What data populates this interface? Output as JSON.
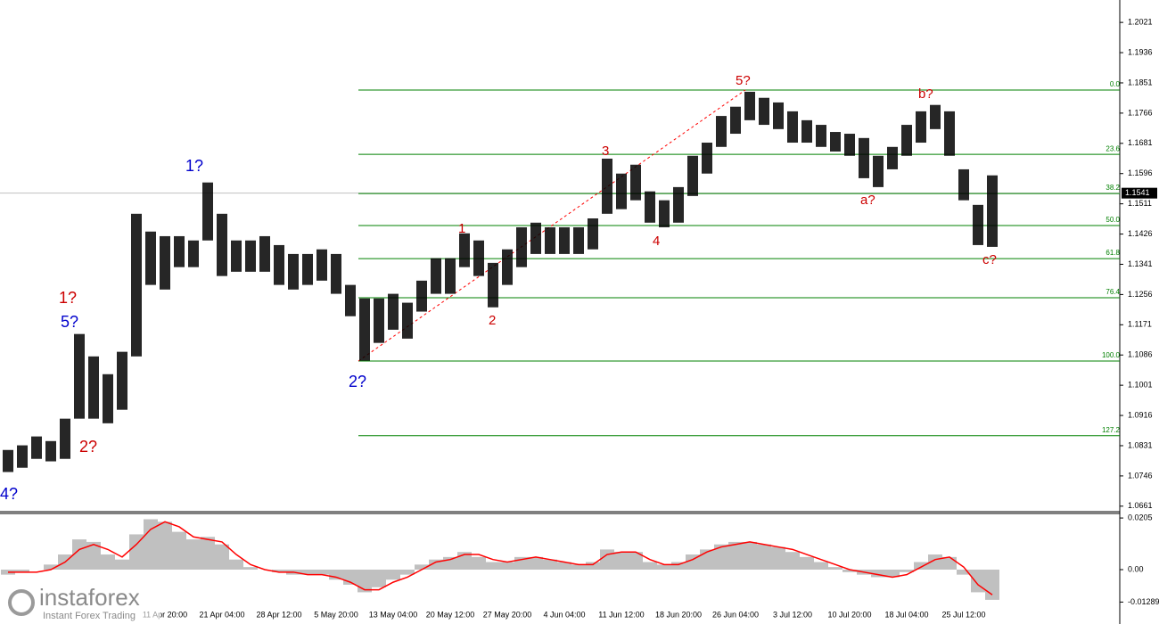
{
  "chart_data": {
    "type": "range",
    "color": "#000000",
    "categories": [
      null,
      null,
      null,
      null,
      null,
      null,
      null,
      null,
      null,
      null,
      null,
      "11 Apr 20:00",
      null,
      null,
      null,
      "21 Apr 04:00",
      null,
      null,
      null,
      "28 Apr 12:00",
      null,
      null,
      null,
      "5 May 20:00",
      null,
      null,
      null,
      "13 May 04:00",
      null,
      null,
      null,
      "20 May 12:00",
      null,
      null,
      null,
      "27 May 20:00",
      null,
      null,
      null,
      "4 Jun 04:00",
      null,
      null,
      null,
      "11 Jun 12:00",
      null,
      null,
      null,
      "18 Jun 20:00",
      null,
      null,
      null,
      "26 Jun 04:00",
      null,
      null,
      null,
      "3 Jul 12:00",
      null,
      null,
      null,
      "10 Jul 20:00",
      null,
      null,
      null,
      "18 Jul 04:00",
      null,
      null,
      null,
      "25 Jul 12:00",
      null,
      null
    ],
    "high": [
      1.0819,
      1.0832,
      1.0857,
      1.0844,
      1.0907,
      1.1145,
      1.1082,
      1.1032,
      1.1095,
      1.1483,
      1.1433,
      1.142,
      1.142,
      1.1408,
      1.1571,
      1.1483,
      1.1408,
      1.1408,
      1.142,
      1.1395,
      1.137,
      1.137,
      1.1383,
      1.137,
      1.1283,
      1.1245,
      1.1245,
      1.1258,
      1.1233,
      1.1295,
      1.1358,
      1.1358,
      1.1428,
      1.1408,
      1.1345,
      1.1383,
      1.1445,
      1.1458,
      1.1445,
      1.1445,
      1.1445,
      1.147,
      1.1638,
      1.1596,
      1.1621,
      1.1546,
      1.1521,
      1.1558,
      1.1646,
      1.1683,
      1.1758,
      1.1784,
      1.1826,
      1.1809,
      1.1796,
      1.1771,
      1.1746,
      1.1733,
      1.1713,
      1.1708,
      1.1696,
      1.1646,
      1.1671,
      1.1733,
      1.1771,
      1.1789,
      1.1771,
      1.1608,
      1.1508,
      1.1591
    ],
    "low": [
      1.0757,
      1.0769,
      1.0794,
      1.0787,
      1.0794,
      1.0907,
      1.0907,
      1.0894,
      1.0932,
      1.1082,
      1.1283,
      1.127,
      1.1333,
      1.1333,
      1.1408,
      1.1308,
      1.132,
      1.132,
      1.132,
      1.1283,
      1.127,
      1.1283,
      1.1295,
      1.1258,
      1.1195,
      1.107,
      1.112,
      1.1157,
      1.1132,
      1.1208,
      1.1258,
      1.1258,
      1.1333,
      1.1308,
      1.122,
      1.1283,
      1.1333,
      1.137,
      1.137,
      1.137,
      1.137,
      1.1383,
      1.1483,
      1.1496,
      1.1521,
      1.1458,
      1.1445,
      1.1458,
      1.1533,
      1.1596,
      1.1671,
      1.1708,
      1.1746,
      1.1733,
      1.1721,
      1.1683,
      1.1683,
      1.1671,
      1.1658,
      1.1646,
      1.1583,
      1.1558,
      1.1608,
      1.1646,
      1.1683,
      1.1721,
      1.1646,
      1.1521,
      1.1395,
      1.139
    ],
    "ylim": [
      1.0648,
      1.2084
    ],
    "yticks": [
      1.2021,
      1.1936,
      1.1851,
      1.1766,
      1.1681,
      1.1596,
      1.1511,
      1.1426,
      1.1341,
      1.1256,
      1.1171,
      1.1086,
      1.1001,
      1.0916,
      1.0831,
      1.0746,
      1.0661
    ],
    "current_price": 1.1541,
    "fib_color": "#008000",
    "trend_color": "#ff0000",
    "fib_levels": [
      {
        "label": "0.0",
        "price": 1.1831
      },
      {
        "label": "23.6",
        "price": 1.165
      },
      {
        "label": "38.2",
        "price": 1.154
      },
      {
        "label": "50.0",
        "price": 1.145
      },
      {
        "label": "61.8",
        "price": 1.1357
      },
      {
        "label": "76.4",
        "price": 1.1247
      },
      {
        "label": "100.0",
        "price": 1.1069
      },
      {
        "label": "127.2",
        "price": 1.0859
      }
    ],
    "waves": [
      {
        "label": "4?",
        "color": "#0000cc"
      },
      {
        "label": "5?",
        "color": "#0000cc"
      },
      {
        "label": "1?",
        "color": "#cc0000"
      },
      {
        "label": "2?",
        "color": "#cc0000"
      },
      {
        "label": "1?",
        "color": "#0000cc"
      },
      {
        "label": "2?",
        "color": "#0000cc"
      },
      {
        "label": "1",
        "color": "#cc0000"
      },
      {
        "label": "2",
        "color": "#cc0000"
      },
      {
        "label": "3",
        "color": "#cc0000"
      },
      {
        "label": "4",
        "color": "#cc0000"
      },
      {
        "label": "5?",
        "color": "#cc0000"
      },
      {
        "label": "a?",
        "color": "#cc0000"
      },
      {
        "label": "b?",
        "color": "#cc0000"
      },
      {
        "label": "c?",
        "color": "#cc0000"
      }
    ],
    "indicator": {
      "type": "macd",
      "hist_color": "#c0c0c0",
      "signal_color": "#ff0000",
      "histogram": [
        -0.002,
        -0.001,
        0,
        0.002,
        0.006,
        0.012,
        0.011,
        0.006,
        0.004,
        0.014,
        0.02,
        0.019,
        0.015,
        0.012,
        0.013,
        0.01,
        0.004,
        0.001,
        0,
        -0.001,
        -0.002,
        -0.002,
        -0.002,
        -0.004,
        -0.006,
        -0.009,
        -0.007,
        -0.004,
        -0.002,
        0.002,
        0.004,
        0.005,
        0.007,
        0.005,
        0.003,
        0.003,
        0.005,
        0.005,
        0.004,
        0.003,
        0.002,
        0.003,
        0.008,
        0.007,
        0.007,
        0.003,
        0.002,
        0.003,
        0.006,
        0.008,
        0.01,
        0.011,
        0.011,
        0.01,
        0.009,
        0.007,
        0.005,
        0.003,
        0.001,
        -0.001,
        -0.002,
        -0.003,
        -0.003,
        -0.001,
        0.003,
        0.006,
        0.005,
        -0.002,
        -0.009,
        -0.012
      ],
      "signal": [
        -0.001,
        -0.001,
        -0.001,
        0,
        0.003,
        0.008,
        0.01,
        0.008,
        0.005,
        0.01,
        0.016,
        0.019,
        0.017,
        0.013,
        0.012,
        0.011,
        0.006,
        0.002,
        0,
        -0.001,
        -0.001,
        -0.002,
        -0.002,
        -0.003,
        -0.005,
        -0.008,
        -0.008,
        -0.005,
        -0.003,
        0,
        0.003,
        0.004,
        0.006,
        0.006,
        0.004,
        0.003,
        0.004,
        0.005,
        0.004,
        0.003,
        0.002,
        0.002,
        0.006,
        0.007,
        0.007,
        0.004,
        0.002,
        0.002,
        0.004,
        0.007,
        0.009,
        0.01,
        0.011,
        0.01,
        0.009,
        0.008,
        0.006,
        0.004,
        0.002,
        0,
        -0.001,
        -0.002,
        -0.003,
        -0.002,
        0.001,
        0.004,
        0.005,
        0.001,
        -0.006,
        -0.01
      ],
      "ylim": [
        -0.0216,
        0.0223
      ],
      "yticks": [
        0.0205,
        {
          "value": 0,
          "label": "0.00"
        },
        -0.01289
      ]
    },
    "watermark": {
      "brand": "instaforex",
      "tagline": "Instant Forex Trading"
    }
  }
}
